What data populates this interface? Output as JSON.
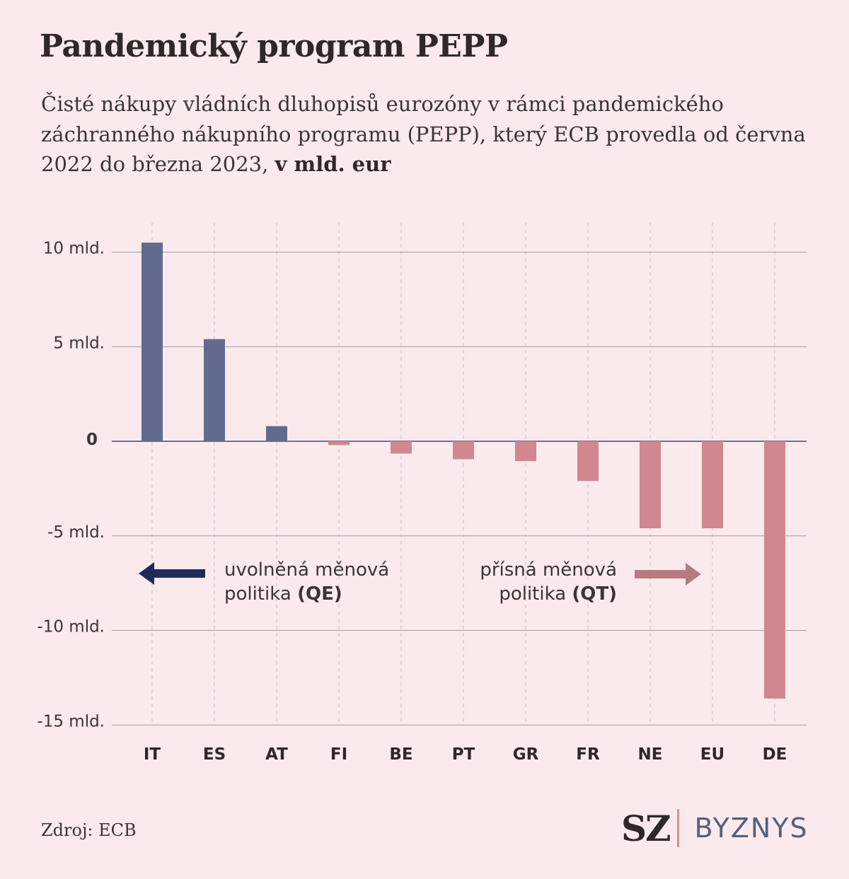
{
  "title": "Pandemický program PEPP",
  "subtitle": {
    "text": "Čisté nákupy vládních dluhopisů eurozóny v rámci pandemického záchranného nákupního programu (PEPP), který ECB provedla od června 2022 do března 2023, ",
    "unit": "v mld. eur"
  },
  "annotations": {
    "qe_line1": "uvolněná měnová",
    "qe_line2_prefix": "politika ",
    "qe_line2_bold": "(QE)",
    "qt_line1": "přísná měnová",
    "qt_line2_prefix": "politika ",
    "qt_line2_bold": "(QT)"
  },
  "source": "Zdroj: ECB",
  "logo": {
    "brand": "SZ",
    "section": "BYZNYS"
  },
  "colors": {
    "positive": "#626b8e",
    "negative": "#d0878f",
    "qe_arrow": "#1f2a5a",
    "qt_arrow": "#b87a80",
    "grid": "#a09ab0",
    "axis": "#4a4870",
    "background": "#fbeaec"
  },
  "chart_data": {
    "type": "bar",
    "categories": [
      "IT",
      "ES",
      "AT",
      "FI",
      "BE",
      "PT",
      "GR",
      "FR",
      "NE",
      "EU",
      "DE"
    ],
    "values": [
      10.5,
      5.4,
      0.8,
      -0.2,
      -0.65,
      -0.95,
      -1.05,
      -2.1,
      -4.6,
      -4.6,
      -13.6
    ],
    "y_ticks": [
      10,
      5,
      0,
      -5,
      -10,
      -15
    ],
    "y_tick_labels": [
      "10 mld.",
      "5 mld.",
      "0",
      "-5 mld.",
      "-10 mld.",
      "-15 mld."
    ],
    "ylim": [
      -15,
      10
    ],
    "grid": true
  }
}
